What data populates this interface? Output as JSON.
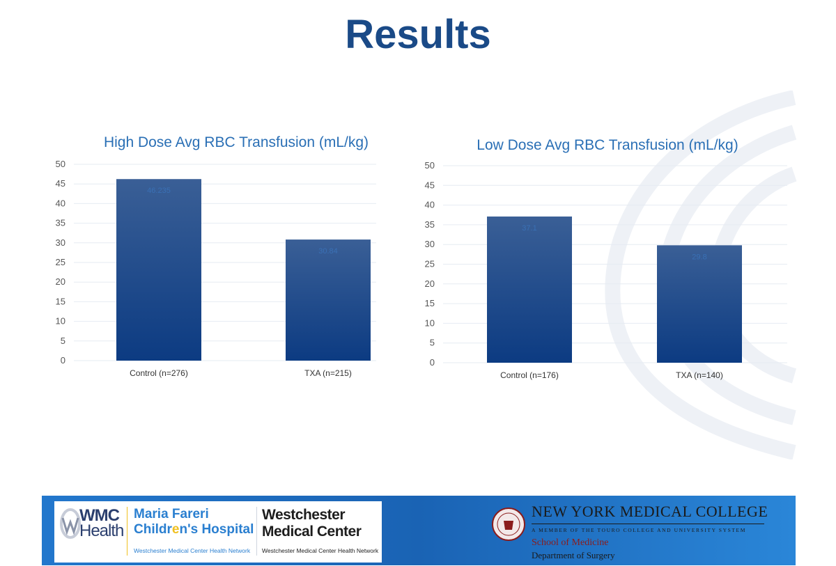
{
  "slide": {
    "title": "Results"
  },
  "colors": {
    "title": "#1a4a87",
    "chart_title": "#2a6fb5",
    "bar_top": "#3a5f96",
    "bar_bottom": "#0c3b82"
  },
  "chart_data": [
    {
      "type": "bar",
      "title": "High Dose Avg RBC Transfusion (mL/kg)",
      "categories": [
        "Control (n=276)",
        "TXA (n=215)"
      ],
      "values": [
        46.235,
        30.84
      ],
      "data_labels": [
        "46.235",
        "30.84"
      ],
      "yticks": [
        "0",
        "5",
        "10",
        "15",
        "20",
        "25",
        "30",
        "35",
        "40",
        "45",
        "50"
      ],
      "ylim": [
        0,
        50
      ],
      "grid": true,
      "legend": "none"
    },
    {
      "type": "bar",
      "title": "Low Dose Avg RBC Transfusion (mL/kg)",
      "categories": [
        "Control (n=176)",
        "TXA (n=140)"
      ],
      "values": [
        37.1,
        29.8
      ],
      "data_labels": [
        "37.1",
        "29.8"
      ],
      "yticks": [
        "0",
        "5",
        "10",
        "15",
        "20",
        "25",
        "30",
        "35",
        "40",
        "45",
        "50"
      ],
      "ylim": [
        0,
        50
      ],
      "grid": true,
      "legend": "none"
    }
  ],
  "footer": {
    "wmc_line1": "WMC",
    "wmc_line2": "Health",
    "maria_line1": "Maria Fareri",
    "maria_line2_a": "Childr",
    "maria_line2_star": "e",
    "maria_line2_b": "n's Hospital",
    "maria_network": "Westchester Medical Center Health Network",
    "westchester_line1": "Westchester",
    "westchester_line2": "Medical Center",
    "westchester_network": "Westchester Medical Center Health Network",
    "nymc_name": "NEW YORK MEDICAL COLLEGE",
    "nymc_member": "A MEMBER OF THE TOURO COLLEGE AND UNIVERSITY SYSTEM",
    "nymc_school": "School of Medicine",
    "nymc_dept": "Department of Surgery"
  }
}
